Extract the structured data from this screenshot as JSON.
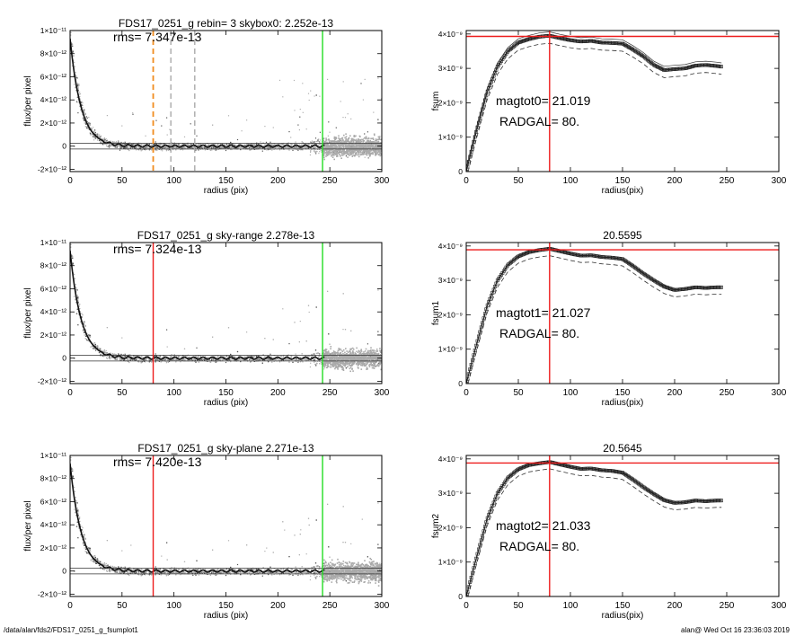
{
  "footer": {
    "path": "/data/alan/fds2/FDS17_0251_g_fsumplot1",
    "stamp": "alan@  Wed Oct 16 23:36:03 2019"
  },
  "chart_data": [
    {
      "type": "scatter",
      "title": "FDS17_0251_g rebin= 3    skybox0:  2.252e-13",
      "annotation": "rms= 7.347e-13",
      "xlabel": "radius (pix)",
      "ylabel": "flux/per pixel",
      "xlim": [
        0,
        300
      ],
      "ylim": [
        -2.2e-12,
        1e-11
      ],
      "xticks": [
        0,
        50,
        100,
        150,
        200,
        250,
        300
      ],
      "yticks": [
        -2e-12,
        0,
        2e-12,
        4e-12,
        6e-12,
        8e-12,
        1e-11
      ],
      "ytick_labels": [
        "-2×10⁻¹²",
        "0",
        "2×10⁻¹²",
        "4×10⁻¹²",
        "6×10⁻¹²",
        "8×10⁻¹²",
        "1×10⁻¹¹"
      ],
      "vlines": [
        {
          "x": 80,
          "color": "#f08c1e",
          "style": "dashed"
        },
        {
          "x": 97,
          "color": "#aaaaaa",
          "style": "dashed"
        },
        {
          "x": 120,
          "color": "#aaaaaa",
          "style": "dashed"
        },
        {
          "x": 243,
          "color": "#22dd22",
          "style": "solid"
        }
      ],
      "hlines": [
        2.5e-13,
        -2.5e-13
      ],
      "profile_scale": 9.3e-12
    },
    {
      "type": "line",
      "title": "",
      "xlabel": "radius(pix)",
      "ylabel": "fsum",
      "annotations": [
        "magtot0=  21.019",
        "RADGAL=     80."
      ],
      "xlim": [
        0,
        300
      ],
      "ylim": [
        0,
        4.1e-09
      ],
      "xticks": [
        0,
        50,
        100,
        150,
        200,
        250,
        300
      ],
      "yticks": [
        0,
        1e-09,
        2e-09,
        3e-09,
        4e-09
      ],
      "ytick_labels": [
        "0",
        "1×10⁻⁹",
        "2×10⁻⁹",
        "3×10⁻⁹",
        "4×10⁻⁹"
      ],
      "hline": 3.93e-09,
      "vline": 80,
      "band": 1.1e-10,
      "x": [
        0,
        10,
        20,
        30,
        40,
        50,
        60,
        70,
        80,
        90,
        100,
        110,
        120,
        130,
        140,
        150,
        160,
        170,
        180,
        190,
        200,
        210,
        220,
        230,
        240,
        245
      ],
      "y": [
        0,
        1.2e-09,
        2.3e-09,
        3.05e-09,
        3.5e-09,
        3.75e-09,
        3.85e-09,
        3.92e-09,
        3.95e-09,
        3.88e-09,
        3.82e-09,
        3.78e-09,
        3.8e-09,
        3.75e-09,
        3.74e-09,
        3.72e-09,
        3.55e-09,
        3.35e-09,
        3.1e-09,
        2.95e-09,
        2.98e-09,
        3e-09,
        3.08e-09,
        3.1e-09,
        3.07e-09,
        3.05e-09
      ]
    },
    {
      "type": "scatter",
      "title": "FDS17_0251_g sky-range  2.278e-13",
      "annotation": "rms= 7.324e-13",
      "xlabel": "radius (pix)",
      "ylabel": "flux/per pixel",
      "xlim": [
        0,
        300
      ],
      "ylim": [
        -2.2e-12,
        1e-11
      ],
      "xticks": [
        0,
        50,
        100,
        150,
        200,
        250,
        300
      ],
      "yticks": [
        -2e-12,
        0,
        2e-12,
        4e-12,
        6e-12,
        8e-12,
        1e-11
      ],
      "ytick_labels": [
        "-2×10⁻¹²",
        "0",
        "2×10⁻¹²",
        "4×10⁻¹²",
        "6×10⁻¹²",
        "8×10⁻¹²",
        "1×10⁻¹¹"
      ],
      "vlines": [
        {
          "x": 80,
          "color": "#ee1c1c",
          "style": "solid"
        },
        {
          "x": 243,
          "color": "#22dd22",
          "style": "solid"
        }
      ],
      "hlines": [
        2.5e-13,
        -2.5e-13
      ],
      "profile_scale": 9.3e-12
    },
    {
      "type": "line",
      "title": "20.5595",
      "xlabel": "radius(pix)",
      "ylabel": "fsum1",
      "annotations": [
        "magtot1=  21.027",
        "RADGAL=     80."
      ],
      "xlim": [
        0,
        300
      ],
      "ylim": [
        0,
        4.1e-09
      ],
      "xticks": [
        0,
        50,
        100,
        150,
        200,
        250,
        300
      ],
      "yticks": [
        0,
        1e-09,
        2e-09,
        3e-09,
        4e-09
      ],
      "ytick_labels": [
        "0",
        "1×10⁻⁹",
        "2×10⁻⁹",
        "3×10⁻⁹",
        "4×10⁻⁹"
      ],
      "hline": 3.89e-09,
      "vline": 80,
      "band": 1e-10,
      "x": [
        0,
        10,
        20,
        30,
        40,
        50,
        60,
        70,
        80,
        90,
        100,
        110,
        120,
        130,
        140,
        150,
        160,
        170,
        180,
        190,
        200,
        210,
        220,
        230,
        240,
        245
      ],
      "y": [
        0,
        1.15e-09,
        2.25e-09,
        3e-09,
        3.45e-09,
        3.7e-09,
        3.82e-09,
        3.88e-09,
        3.92e-09,
        3.85e-09,
        3.78e-09,
        3.72e-09,
        3.73e-09,
        3.68e-09,
        3.66e-09,
        3.62e-09,
        3.42e-09,
        3.2e-09,
        3e-09,
        2.82e-09,
        2.72e-09,
        2.75e-09,
        2.8e-09,
        2.78e-09,
        2.8e-09,
        2.8e-09
      ]
    },
    {
      "type": "scatter",
      "title": "FDS17_0251_g sky-plane  2.271e-13",
      "annotation": "rms= 7.420e-13",
      "xlabel": "radius (pix)",
      "ylabel": "flux/per pixel",
      "xlim": [
        0,
        300
      ],
      "ylim": [
        -2.2e-12,
        1e-11
      ],
      "xticks": [
        0,
        50,
        100,
        150,
        200,
        250,
        300
      ],
      "yticks": [
        -2e-12,
        0,
        2e-12,
        4e-12,
        6e-12,
        8e-12,
        1e-11
      ],
      "ytick_labels": [
        "-2×10⁻¹²",
        "0",
        "2×10⁻¹²",
        "4×10⁻¹²",
        "6×10⁻¹²",
        "8×10⁻¹²",
        "1×10⁻¹¹"
      ],
      "vlines": [
        {
          "x": 80,
          "color": "#ee1c1c",
          "style": "solid"
        },
        {
          "x": 243,
          "color": "#22dd22",
          "style": "solid"
        }
      ],
      "hlines": [
        2.5e-13,
        -2.5e-13
      ],
      "profile_scale": 9.3e-12
    },
    {
      "type": "line",
      "title": "20.5645",
      "xlabel": "radius(pix)",
      "ylabel": "fsum2",
      "annotations": [
        "magtot2=  21.033",
        "RADGAL=     80."
      ],
      "xlim": [
        0,
        300
      ],
      "ylim": [
        0,
        4.1e-09
      ],
      "xticks": [
        0,
        50,
        100,
        150,
        200,
        250,
        300
      ],
      "yticks": [
        0,
        1e-09,
        2e-09,
        3e-09,
        4e-09
      ],
      "ytick_labels": [
        "0",
        "1×10⁻⁹",
        "2×10⁻⁹",
        "3×10⁻⁹",
        "4×10⁻⁹"
      ],
      "hline": 3.88e-09,
      "vline": 80,
      "band": 1e-10,
      "x": [
        0,
        10,
        20,
        30,
        40,
        50,
        60,
        70,
        80,
        90,
        100,
        110,
        120,
        130,
        140,
        150,
        160,
        170,
        180,
        190,
        200,
        210,
        220,
        230,
        240,
        245
      ],
      "y": [
        0,
        1.15e-09,
        2.25e-09,
        3e-09,
        3.45e-09,
        3.7e-09,
        3.82e-09,
        3.87e-09,
        3.91e-09,
        3.84e-09,
        3.77e-09,
        3.71e-09,
        3.72e-09,
        3.67e-09,
        3.65e-09,
        3.6e-09,
        3.4e-09,
        3.18e-09,
        2.98e-09,
        2.8e-09,
        2.72e-09,
        2.74e-09,
        2.79e-09,
        2.77e-09,
        2.79e-09,
        2.79e-09
      ]
    }
  ]
}
